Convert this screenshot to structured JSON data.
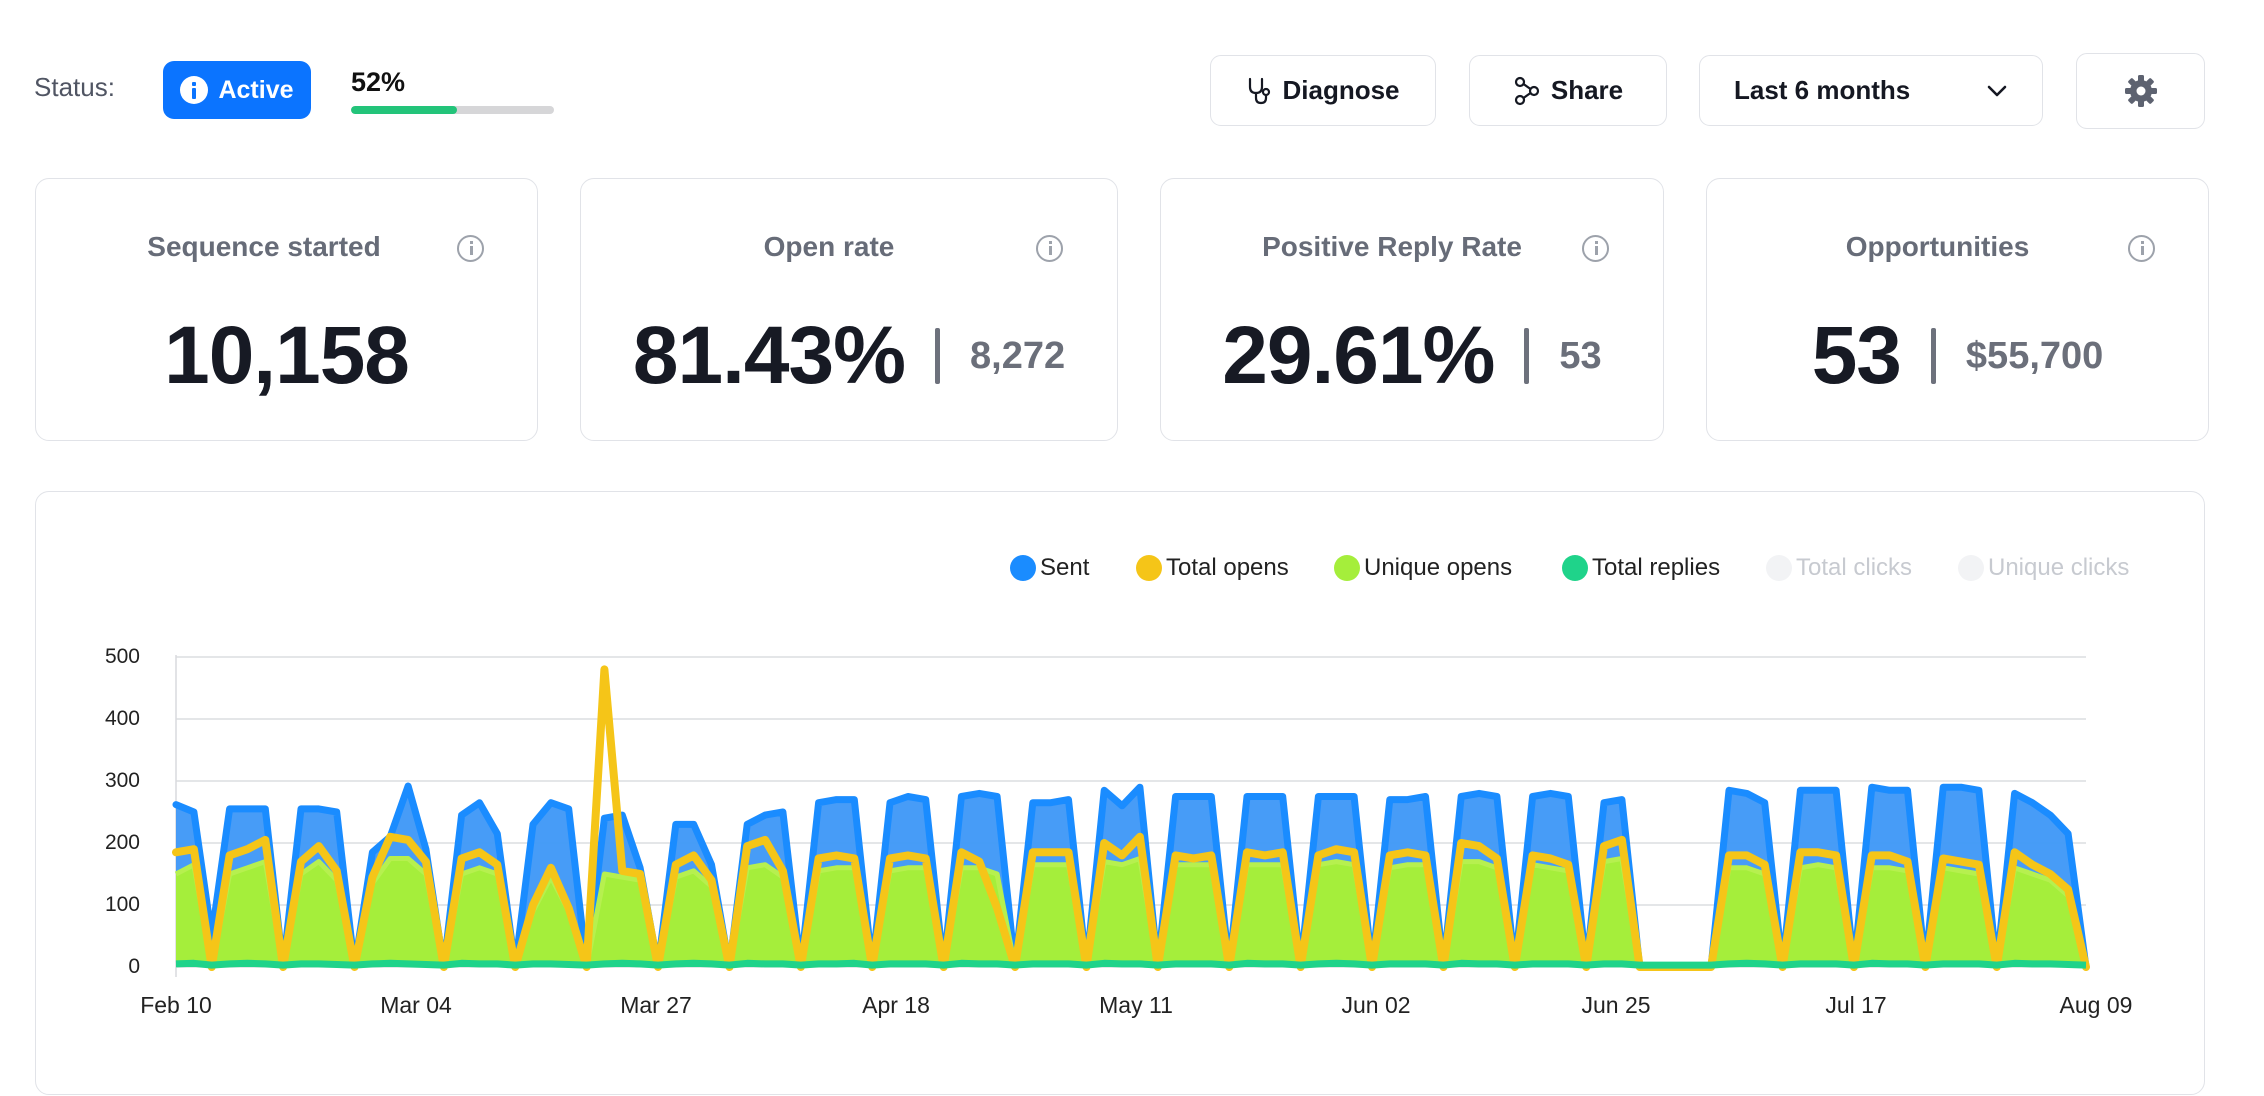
{
  "header": {
    "status_label": "Status:",
    "status_value": "Active",
    "progress_text": "52%",
    "progress": 0.52,
    "diagnose_label": "Diagnose",
    "share_label": "Share",
    "range_label": "Last 6 months",
    "accent_color": "#0b74ff",
    "progress_color": "#23c47a",
    "icons": {
      "status": "info-icon",
      "diagnose": "stethoscope-icon",
      "share": "share-icon",
      "range": "chevron-down-icon",
      "settings": "gear-icon"
    }
  },
  "stats": [
    {
      "title": "Sequence started",
      "value": "10,158",
      "sub": ""
    },
    {
      "title": "Open rate",
      "value": "81.43%",
      "sub": "8,272"
    },
    {
      "title": "Positive Reply Rate",
      "value": "29.61%",
      "sub": "53"
    },
    {
      "title": "Opportunities",
      "value": "53",
      "sub": "$55,700"
    }
  ],
  "chart_data": {
    "type": "area",
    "title": "",
    "xlabel": "",
    "ylabel": "",
    "ylim": [
      0,
      500
    ],
    "yticks": [
      "0",
      "100",
      "200",
      "300",
      "400",
      "500"
    ],
    "xticks": [
      "Feb 10",
      "Mar 04",
      "Mar 27",
      "Apr 18",
      "May 11",
      "Jun 02",
      "Jun 25",
      "Jul 17",
      "Aug 09"
    ],
    "grid": true,
    "legend_position": "top-right",
    "x_start": "Feb 10",
    "x_end": "Aug 09",
    "series": [
      {
        "name": "Sent",
        "color": "#1a8cff",
        "enabled": true,
        "values": [
          262,
          250,
          50,
          255,
          255,
          255,
          0,
          255,
          255,
          250,
          0,
          185,
          210,
          292,
          190,
          0,
          245,
          265,
          215,
          0,
          230,
          265,
          255,
          0,
          240,
          245,
          160,
          0,
          230,
          230,
          165,
          0,
          230,
          245,
          250,
          0,
          265,
          270,
          270,
          0,
          265,
          275,
          270,
          0,
          275,
          280,
          275,
          0,
          265,
          265,
          270,
          0,
          285,
          260,
          290,
          0,
          275,
          275,
          275,
          0,
          275,
          275,
          275,
          0,
          275,
          275,
          275,
          0,
          270,
          270,
          275,
          0,
          275,
          280,
          275,
          0,
          275,
          280,
          275,
          0,
          265,
          270,
          0,
          0,
          0,
          0,
          0,
          285,
          280,
          265,
          0,
          285,
          285,
          285,
          0,
          290,
          285,
          285,
          0,
          290,
          290,
          285,
          0,
          280,
          265,
          245,
          215,
          0
        ]
      },
      {
        "name": "Total opens",
        "color": "#f5c518",
        "enabled": true,
        "values": [
          185,
          190,
          0,
          180,
          190,
          205,
          0,
          170,
          195,
          155,
          0,
          145,
          210,
          205,
          170,
          0,
          175,
          185,
          165,
          0,
          100,
          160,
          95,
          0,
          480,
          155,
          150,
          0,
          165,
          180,
          140,
          0,
          195,
          205,
          155,
          0,
          175,
          180,
          175,
          0,
          175,
          180,
          175,
          0,
          185,
          170,
          95,
          0,
          185,
          185,
          185,
          0,
          200,
          180,
          210,
          0,
          180,
          175,
          180,
          0,
          185,
          180,
          185,
          0,
          180,
          190,
          185,
          0,
          180,
          185,
          180,
          0,
          200,
          195,
          175,
          0,
          180,
          175,
          165,
          0,
          195,
          205,
          0,
          0,
          0,
          0,
          0,
          180,
          180,
          165,
          0,
          185,
          185,
          180,
          0,
          180,
          180,
          170,
          0,
          175,
          170,
          165,
          0,
          185,
          165,
          150,
          125,
          0
        ]
      },
      {
        "name": "Unique opens",
        "color": "#a5ee3b",
        "enabled": true,
        "values": [
          150,
          165,
          0,
          150,
          160,
          170,
          0,
          150,
          170,
          140,
          0,
          135,
          175,
          175,
          150,
          0,
          150,
          160,
          150,
          0,
          90,
          145,
          90,
          0,
          150,
          145,
          140,
          0,
          145,
          155,
          130,
          0,
          160,
          165,
          145,
          0,
          155,
          160,
          160,
          0,
          155,
          160,
          160,
          0,
          160,
          160,
          150,
          0,
          165,
          165,
          165,
          0,
          170,
          165,
          175,
          0,
          165,
          165,
          165,
          0,
          165,
          165,
          165,
          0,
          165,
          170,
          165,
          0,
          160,
          165,
          165,
          0,
          170,
          170,
          160,
          0,
          165,
          160,
          155,
          0,
          170,
          175,
          0,
          0,
          0,
          0,
          0,
          160,
          160,
          150,
          0,
          160,
          165,
          160,
          0,
          160,
          160,
          155,
          0,
          160,
          155,
          150,
          0,
          160,
          150,
          140,
          115,
          0
        ]
      },
      {
        "name": "Total replies",
        "color": "#1fd38a",
        "enabled": true,
        "values": [
          5,
          6,
          3,
          5,
          6,
          5,
          3,
          5,
          5,
          4,
          3,
          5,
          6,
          5,
          4,
          3,
          6,
          5,
          5,
          3,
          5,
          5,
          4,
          3,
          5,
          6,
          5,
          3,
          5,
          6,
          5,
          3,
          6,
          5,
          5,
          3,
          5,
          5,
          6,
          3,
          5,
          5,
          5,
          3,
          6,
          5,
          5,
          3,
          5,
          5,
          5,
          3,
          6,
          5,
          5,
          3,
          5,
          5,
          5,
          3,
          6,
          5,
          5,
          3,
          5,
          6,
          5,
          3,
          5,
          5,
          5,
          3,
          6,
          5,
          5,
          3,
          5,
          5,
          5,
          3,
          5,
          5,
          3,
          3,
          3,
          3,
          3,
          5,
          6,
          5,
          3,
          5,
          5,
          5,
          3,
          6,
          5,
          5,
          3,
          5,
          5,
          5,
          3,
          6,
          5,
          5,
          4,
          3
        ]
      },
      {
        "name": "Total clicks",
        "color": "#f2f3f5",
        "enabled": false,
        "values": []
      },
      {
        "name": "Unique clicks",
        "color": "#f2f3f5",
        "enabled": false,
        "values": []
      }
    ]
  }
}
